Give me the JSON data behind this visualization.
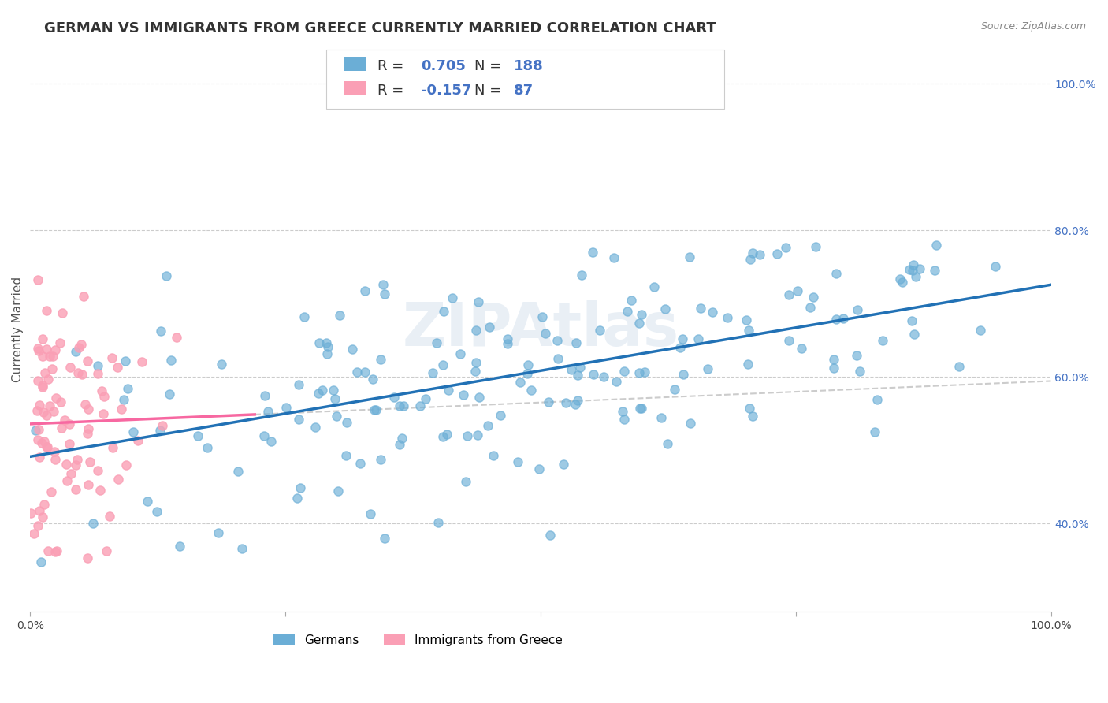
{
  "title": "GERMAN VS IMMIGRANTS FROM GREECE CURRENTLY MARRIED CORRELATION CHART",
  "source": "Source: ZipAtlas.com",
  "ylabel": "Currently Married",
  "r_german": 0.705,
  "n_german": 188,
  "r_greece": -0.157,
  "n_greece": 87,
  "german_color": "#6baed6",
  "greece_color": "#fa9fb5",
  "german_line_color": "#2171b5",
  "greece_line_color": "#f768a1",
  "dash_line_color": "#cccccc",
  "watermark": "ZIPAtlas",
  "background_color": "#ffffff",
  "xmin": 0.0,
  "xmax": 1.0,
  "ymin": 0.28,
  "ymax": 1.05,
  "yticks": [
    0.4,
    0.6,
    0.8,
    1.0
  ],
  "ytick_labels": [
    "40.0%",
    "60.0%",
    "80.0%",
    "100.0%"
  ],
  "title_fontsize": 13,
  "tick_fontsize": 10,
  "label_fontsize": 11,
  "info_fontsize": 13
}
